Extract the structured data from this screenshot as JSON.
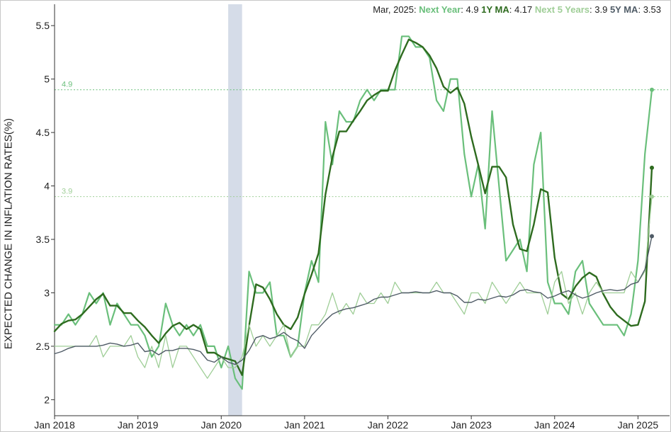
{
  "header": {
    "date": "Mar, 2025:",
    "items": [
      {
        "label": "Next Year",
        "value": "4.9",
        "color": "#6abf7b"
      },
      {
        "label": "1Y MA",
        "value": "4.17",
        "color": "#2e6b1f"
      },
      {
        "label": "Next 5 Years",
        "value": "3.9",
        "color": "#9fce97"
      },
      {
        "label": "5Y MA",
        "value": "3.53",
        "color": "#4f5b66"
      }
    ]
  },
  "chart_data": {
    "type": "line",
    "ylabel": "EXPECTED CHANGE IN INFLATION RATES(%)",
    "ylim": [
      1.85,
      5.7
    ],
    "y_ticks": [
      "2",
      "2.5",
      "3",
      "3.5",
      "4",
      "4.5",
      "5",
      "5.5"
    ],
    "x_range": [
      "2018-01",
      "2025-03"
    ],
    "x_ticks": [
      "Jan 2018",
      "Jan 2019",
      "Jan 2020",
      "Jan 2021",
      "Jan 2022",
      "Jan 2023",
      "Jan 2024",
      "Jan 2025"
    ],
    "grid": false,
    "shaded_region": {
      "start": "2020-02",
      "end": "2020-04",
      "color": "#d5dce8"
    },
    "reference_lines": [
      {
        "value": 4.9,
        "label": "4.9",
        "color": "#6abf7b"
      },
      {
        "value": 3.9,
        "label": "3.9",
        "color": "#9fce97"
      }
    ],
    "series": [
      {
        "name": "Next Year",
        "color": "#6abf7b",
        "width": 2.2,
        "values": [
          2.7,
          2.7,
          2.8,
          2.7,
          2.8,
          3.0,
          2.9,
          3.0,
          2.7,
          2.9,
          2.8,
          2.7,
          2.7,
          2.6,
          2.4,
          2.5,
          2.9,
          2.7,
          2.6,
          2.7,
          2.6,
          2.7,
          2.5,
          2.5,
          2.3,
          2.5,
          2.2,
          2.1,
          3.2,
          3.0,
          3.0,
          3.1,
          2.6,
          2.6,
          2.4,
          2.5,
          3.0,
          3.3,
          3.1,
          4.6,
          4.2,
          4.7,
          4.6,
          4.6,
          4.8,
          4.9,
          4.8,
          4.9,
          4.9,
          4.9,
          5.4,
          5.4,
          5.3,
          5.3,
          5.2,
          4.8,
          4.7,
          5.0,
          5.0,
          4.3,
          3.9,
          4.2,
          3.6,
          4.7,
          4.0,
          3.3,
          3.4,
          3.5,
          3.2,
          4.2,
          4.5,
          3.1,
          2.9,
          2.9,
          2.8,
          3.2,
          3.3,
          2.9,
          2.8,
          2.7,
          2.7,
          2.7,
          2.6,
          2.8,
          3.3,
          4.3,
          4.9
        ]
      },
      {
        "name": "1Y MA",
        "color": "#2e6b1f",
        "width": 2.4,
        "values": [
          2.64,
          2.71,
          2.74,
          2.75,
          2.8,
          2.87,
          2.94,
          2.99,
          2.88,
          2.88,
          2.81,
          2.81,
          2.74,
          2.68,
          2.6,
          2.53,
          2.62,
          2.69,
          2.72,
          2.66,
          2.7,
          2.66,
          2.44,
          2.44,
          2.4,
          2.38,
          2.36,
          2.23,
          2.69,
          3.08,
          3.05,
          2.94,
          2.8,
          2.7,
          2.66,
          2.77,
          2.99,
          3.17,
          3.37,
          3.92,
          4.27,
          4.51,
          4.51,
          4.61,
          4.7,
          4.8,
          4.85,
          4.89,
          4.89,
          5.08,
          5.23,
          5.37,
          5.34,
          5.3,
          5.22,
          5.1,
          4.93,
          4.87,
          4.92,
          4.77,
          4.46,
          4.2,
          3.93,
          4.18,
          4.18,
          4.08,
          3.64,
          3.41,
          3.39,
          3.64,
          3.97,
          3.94,
          3.33,
          2.99,
          2.94,
          3.06,
          3.14,
          3.19,
          3.15,
          2.99,
          2.87,
          2.79,
          2.74,
          2.69,
          2.7,
          2.92,
          4.17
        ]
      },
      {
        "name": "Next 5 Years",
        "color": "#9fce97",
        "width": 1.3,
        "values": [
          2.5,
          2.5,
          2.5,
          2.5,
          2.5,
          2.5,
          2.6,
          2.4,
          2.5,
          2.5,
          2.5,
          2.6,
          2.4,
          2.3,
          2.5,
          2.3,
          2.6,
          2.3,
          2.5,
          2.5,
          2.4,
          2.3,
          2.2,
          2.3,
          2.4,
          2.3,
          2.3,
          2.4,
          2.7,
          2.5,
          2.6,
          2.5,
          2.6,
          2.7,
          2.4,
          2.5,
          2.5,
          2.7,
          2.7,
          2.8,
          3.0,
          2.8,
          2.9,
          2.8,
          3.0,
          2.9,
          2.9,
          3.0,
          2.9,
          3.1,
          3.0,
          3.0,
          3.0,
          3.0,
          3.0,
          3.1,
          3.0,
          3.0,
          2.9,
          2.8,
          3.0,
          3.0,
          2.9,
          3.1,
          3.0,
          2.9,
          3.0,
          3.1,
          3.0,
          3.0,
          3.0,
          2.8,
          3.1,
          3.2,
          2.9,
          3.0,
          2.8,
          3.0,
          3.1,
          3.0,
          3.0,
          3.0,
          3.0,
          3.2,
          3.1,
          3.2,
          3.9
        ]
      },
      {
        "name": "5Y MA",
        "color": "#4f5b66",
        "width": 1.4,
        "values": [
          2.43,
          2.45,
          2.48,
          2.5,
          2.5,
          2.5,
          2.5,
          2.51,
          2.53,
          2.52,
          2.5,
          2.51,
          2.53,
          2.45,
          2.46,
          2.42,
          2.46,
          2.46,
          2.48,
          2.48,
          2.47,
          2.45,
          2.37,
          2.35,
          2.4,
          2.35,
          2.33,
          2.37,
          2.46,
          2.58,
          2.6,
          2.57,
          2.59,
          2.63,
          2.58,
          2.55,
          2.48,
          2.6,
          2.67,
          2.74,
          2.8,
          2.83,
          2.85,
          2.86,
          2.88,
          2.9,
          2.94,
          2.96,
          2.96,
          2.98,
          3.0,
          3.0,
          3.01,
          3.0,
          3.0,
          3.02,
          3.0,
          3.0,
          2.97,
          2.91,
          2.91,
          2.94,
          2.93,
          2.95,
          2.97,
          2.96,
          2.98,
          3.02,
          3.03,
          3.01,
          3.0,
          2.95,
          2.97,
          3.0,
          3.02,
          2.98,
          2.95,
          2.97,
          3.0,
          3.02,
          3.03,
          3.02,
          3.03,
          3.08,
          3.1,
          3.22,
          3.53
        ]
      }
    ]
  }
}
